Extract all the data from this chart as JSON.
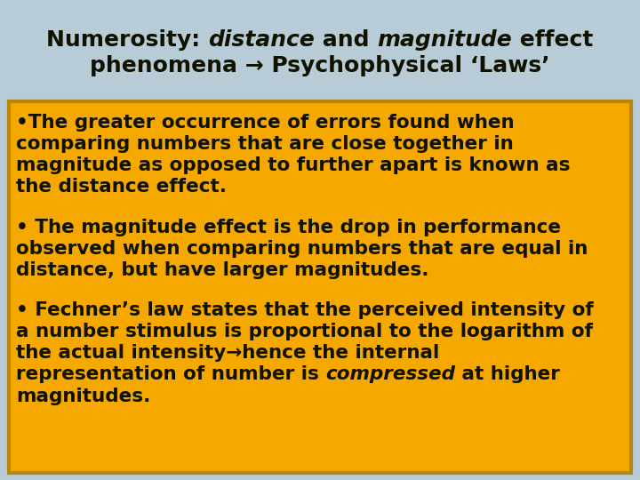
{
  "title_bg": "#b8ccd8",
  "body_bg": "#f5a800",
  "body_text_color": "#111100",
  "title_text_color": "#111100",
  "title_fontsize": 18,
  "body_fontsize": 15.5,
  "fig_w": 7.2,
  "fig_h": 5.4,
  "dpi": 100,
  "title_segs_line1": [
    [
      "Numerosity: ",
      "normal"
    ],
    [
      "distance",
      "italic"
    ],
    [
      " and ",
      "normal"
    ],
    [
      "magnitude",
      "italic"
    ],
    [
      " effect",
      "normal"
    ]
  ],
  "title_line2": "phenomena → Psychophysical ‘Laws’",
  "bullet1_lines": [
    "•The greater occurrence of errors found when",
    "comparing numbers that are close together in",
    "magnitude as opposed to further apart is known as",
    "the distance effect."
  ],
  "bullet2_lines": [
    "• The magnitude effect is the drop in performance",
    "observed when comparing numbers that are equal in",
    "distance, but have larger magnitudes."
  ],
  "bullet3_lines": [
    "• Fechner’s law states that the perceived intensity of",
    "a number stimulus is proportional to the logarithm of",
    "the actual intensity→hence the internal",
    [
      "representation of number is ",
      "compressed",
      " at higher"
    ],
    "magnitudes."
  ]
}
